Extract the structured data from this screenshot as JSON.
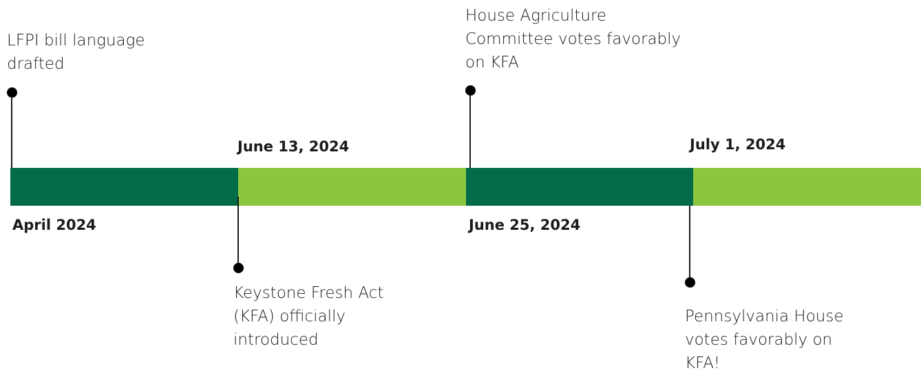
{
  "colors": {
    "dark_green": "#026b48",
    "light_green": "#8cc63f"
  },
  "events": [
    {
      "date": "April 2024",
      "lines": [
        "LFPI bill language",
        "drafted"
      ]
    },
    {
      "date": "June 13, 2024",
      "lines": [
        "Keystone Fresh Act",
        "(KFA) officially",
        "introduced"
      ]
    },
    {
      "date": "June 25, 2024",
      "lines": [
        "House Agriculture",
        "Committee votes favorably",
        "on KFA"
      ]
    },
    {
      "date": "July 1, 2024",
      "lines": [
        "Pennsylvania House",
        "votes favorably on",
        "KFA!"
      ]
    }
  ]
}
